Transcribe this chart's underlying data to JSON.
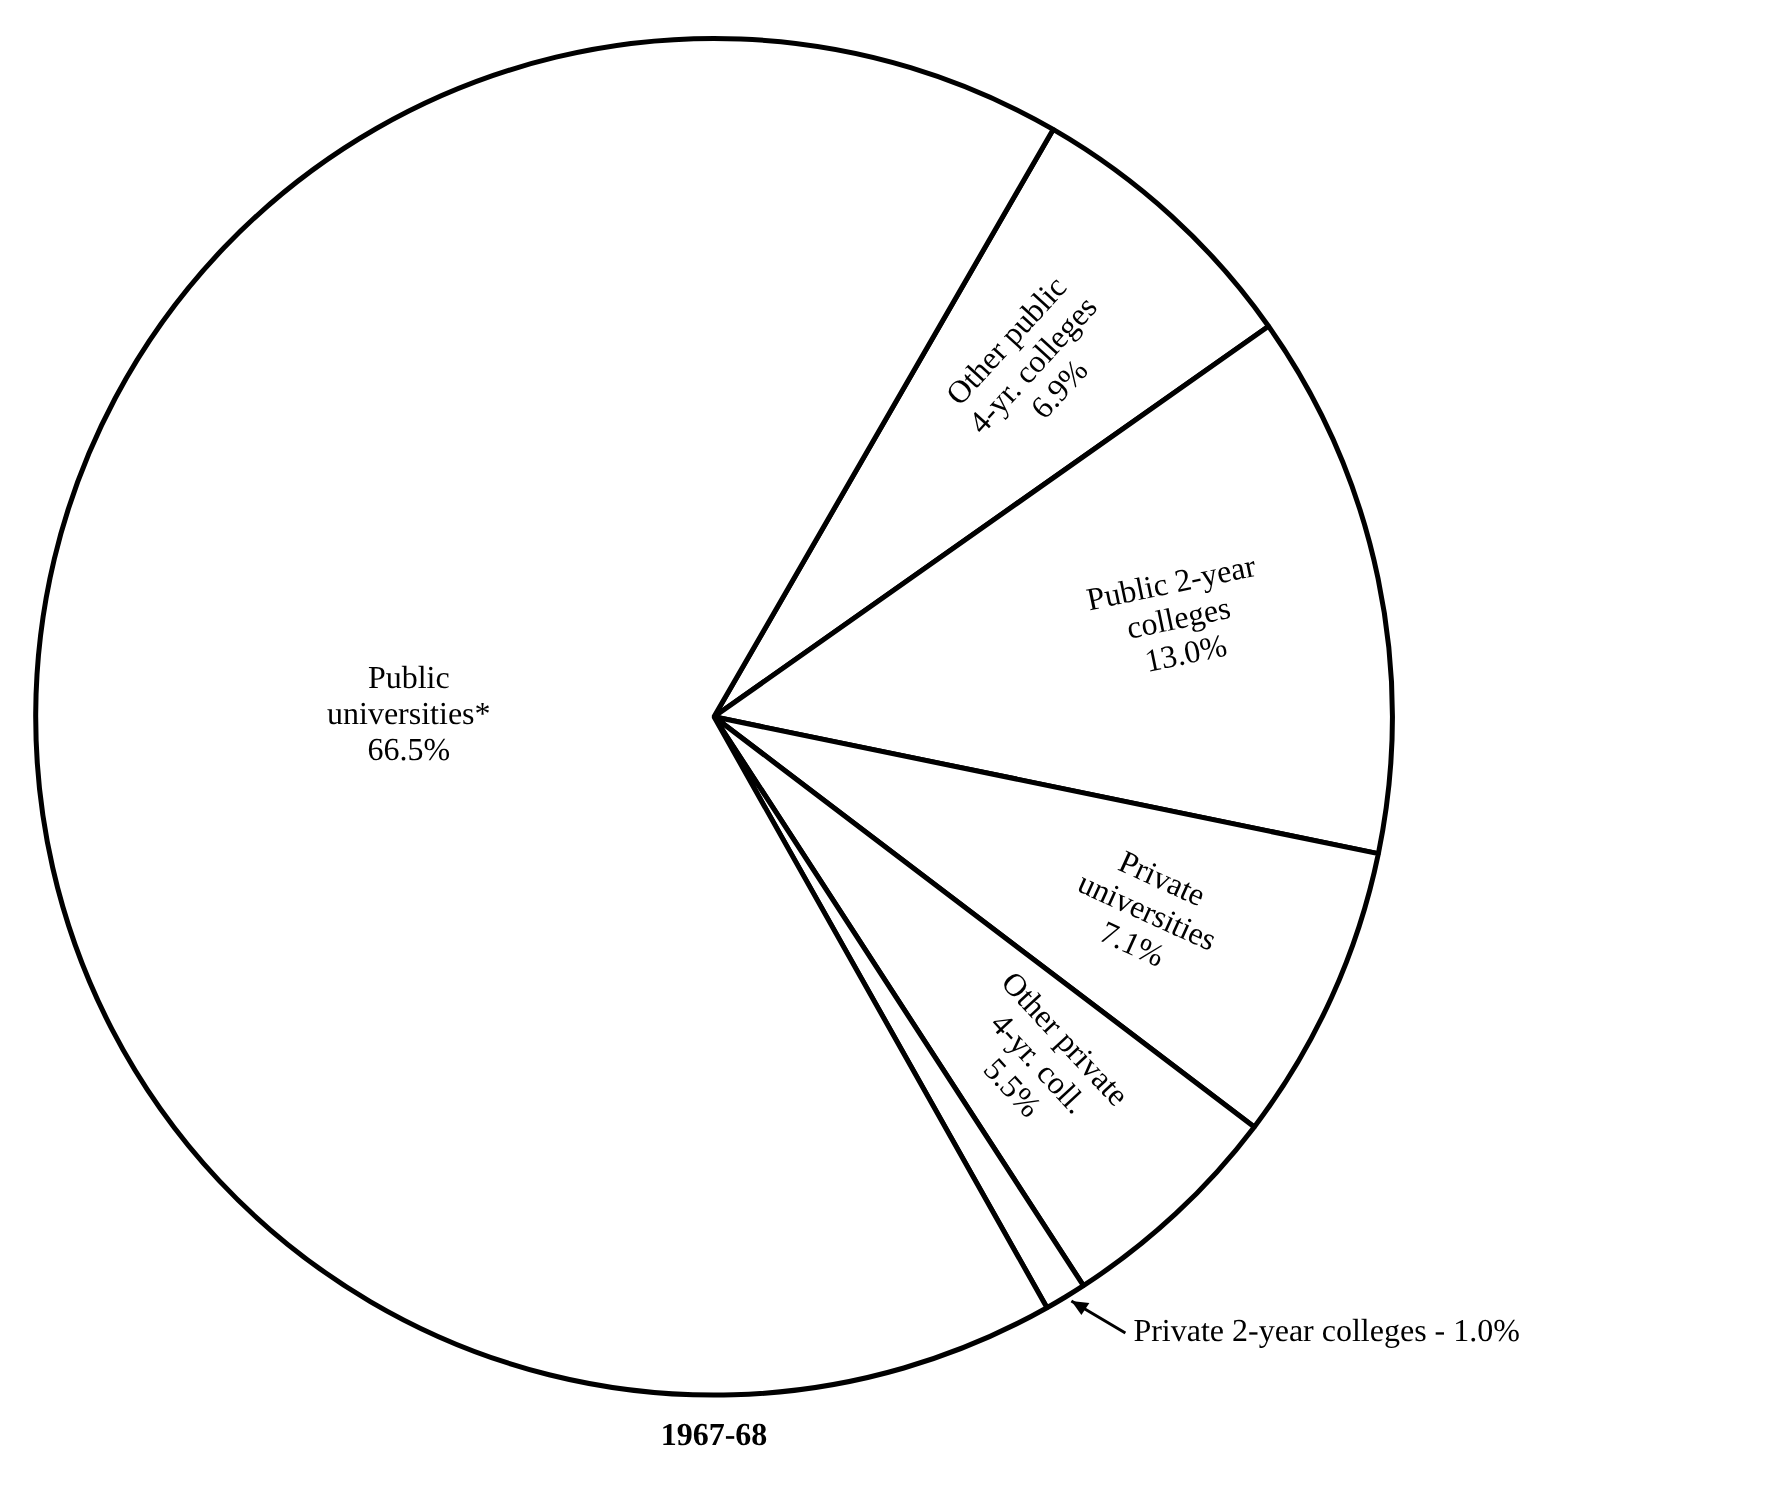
{
  "chart_data": {
    "type": "pie",
    "title": "1967-68",
    "categories": [
      "Other public 4-yr. colleges",
      "Public 2-year colleges",
      "Private universities",
      "Other private 4-yr. coll.",
      "Private 2-year colleges -",
      "Public universities*"
    ],
    "values": [
      6.9,
      13.0,
      7.1,
      5.5,
      1.0,
      66.5
    ],
    "value_labels": [
      "6.9%",
      "13.0%",
      "7.1%",
      "5.5%",
      "1.0%",
      "66.5%"
    ],
    "colors": [
      "#ffffff",
      "#ffffff",
      "#ffffff",
      "#ffffff",
      "#ffffff",
      "#ffffff"
    ],
    "legend": false
  }
}
